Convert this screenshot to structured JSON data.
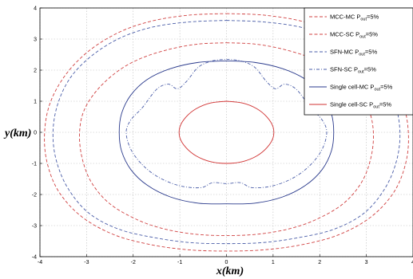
{
  "chart_data": {
    "type": "line",
    "title": "",
    "xlabel": "x(km)",
    "ylabel": "y(km)",
    "xlim": [
      -4,
      4
    ],
    "ylim": [
      -4,
      4
    ],
    "xticks": [
      "-4",
      "-3",
      "-2",
      "-1",
      "0",
      "1",
      "2",
      "3",
      "4"
    ],
    "yticks": [
      "-4",
      "-3",
      "-2",
      "-1",
      "0",
      "1",
      "2",
      "3",
      "4"
    ],
    "grid": true,
    "legend_position": "top-right",
    "series": [
      {
        "name": "MCC-MC P_out=5%",
        "legend_main": "MCC-MC P",
        "legend_sub": "out",
        "legend_tail": "=5%",
        "color": "#d04040",
        "dash": "dashed",
        "points": [
          [
            0,
            3.82
          ],
          [
            0.8,
            3.77
          ],
          [
            1.6,
            3.58
          ],
          [
            2.3,
            3.22
          ],
          [
            2.95,
            2.62
          ],
          [
            3.45,
            1.85
          ],
          [
            3.78,
            0.95
          ],
          [
            3.9,
            0
          ],
          [
            3.85,
            -0.95
          ],
          [
            3.6,
            -1.9
          ],
          [
            3.1,
            -2.72
          ],
          [
            2.4,
            -3.3
          ],
          [
            1.6,
            -3.62
          ],
          [
            0.8,
            -3.78
          ],
          [
            0,
            -3.82
          ],
          [
            -0.8,
            -3.78
          ],
          [
            -1.6,
            -3.62
          ],
          [
            -2.4,
            -3.3
          ],
          [
            -3.1,
            -2.72
          ],
          [
            -3.6,
            -1.9
          ],
          [
            -3.85,
            -0.95
          ],
          [
            -3.9,
            0
          ],
          [
            -3.78,
            0.95
          ],
          [
            -3.45,
            1.85
          ],
          [
            -2.95,
            2.62
          ],
          [
            -2.3,
            3.22
          ],
          [
            -1.6,
            3.58
          ],
          [
            -0.8,
            3.77
          ],
          [
            0,
            3.82
          ]
        ]
      },
      {
        "name": "MCC-SC P_out=5%",
        "legend_main": "MCC-SC P",
        "legend_sub": "out",
        "legend_tail": "=5%",
        "color": "#d04040",
        "dash": "dashed",
        "points": [
          [
            0,
            2.88
          ],
          [
            0.6,
            2.84
          ],
          [
            1.2,
            2.68
          ],
          [
            1.8,
            2.4
          ],
          [
            2.3,
            2.0
          ],
          [
            2.75,
            1.4
          ],
          [
            3.05,
            0.72
          ],
          [
            3.15,
            0
          ],
          [
            3.1,
            -0.8
          ],
          [
            2.9,
            -1.6
          ],
          [
            2.5,
            -2.3
          ],
          [
            1.9,
            -2.82
          ],
          [
            1.3,
            -3.12
          ],
          [
            0.65,
            -3.28
          ],
          [
            0,
            -3.32
          ],
          [
            -0.65,
            -3.28
          ],
          [
            -1.3,
            -3.12
          ],
          [
            -1.9,
            -2.82
          ],
          [
            -2.5,
            -2.3
          ],
          [
            -2.9,
            -1.6
          ],
          [
            -3.1,
            -0.8
          ],
          [
            -3.15,
            0
          ],
          [
            -3.05,
            0.72
          ],
          [
            -2.75,
            1.4
          ],
          [
            -2.3,
            2.0
          ],
          [
            -1.8,
            2.4
          ],
          [
            -1.2,
            2.68
          ],
          [
            -0.6,
            2.84
          ],
          [
            0,
            2.88
          ]
        ]
      },
      {
        "name": "SFN-MC P_out=5%",
        "legend_main": "SFN-MC P",
        "legend_sub": "out",
        "legend_tail": "=5%",
        "color": "#4a5da8",
        "dash": "dashed",
        "points": [
          [
            0,
            3.6
          ],
          [
            0.8,
            3.55
          ],
          [
            1.6,
            3.38
          ],
          [
            2.3,
            3.02
          ],
          [
            2.9,
            2.45
          ],
          [
            3.35,
            1.75
          ],
          [
            3.62,
            0.9
          ],
          [
            3.72,
            0
          ],
          [
            3.65,
            -0.9
          ],
          [
            3.4,
            -1.8
          ],
          [
            2.95,
            -2.6
          ],
          [
            2.3,
            -3.12
          ],
          [
            1.5,
            -3.4
          ],
          [
            0.75,
            -3.55
          ],
          [
            0,
            -3.58
          ],
          [
            -0.75,
            -3.55
          ],
          [
            -1.5,
            -3.4
          ],
          [
            -2.3,
            -3.12
          ],
          [
            -2.95,
            -2.6
          ],
          [
            -3.4,
            -1.8
          ],
          [
            -3.65,
            -0.9
          ],
          [
            -3.72,
            0
          ],
          [
            -3.62,
            0.9
          ],
          [
            -3.35,
            1.75
          ],
          [
            -2.9,
            2.45
          ],
          [
            -2.3,
            3.02
          ],
          [
            -1.6,
            3.38
          ],
          [
            -0.8,
            3.55
          ],
          [
            0,
            3.6
          ]
        ]
      },
      {
        "name": "SFN-SC P_out=5%",
        "legend_main": "SFN-SC P",
        "legend_sub": "out",
        "legend_tail": "=5%",
        "color": "#4a5da8",
        "dash": "dashdot",
        "points": [
          [
            0,
            2.35
          ],
          [
            0.3,
            2.3
          ],
          [
            0.6,
            2.1
          ],
          [
            0.85,
            1.65
          ],
          [
            1.05,
            1.4
          ],
          [
            1.25,
            1.55
          ],
          [
            1.5,
            1.38
          ],
          [
            1.8,
            0.8
          ],
          [
            2.05,
            0.4
          ],
          [
            2.15,
            0
          ],
          [
            2.05,
            -0.55
          ],
          [
            1.8,
            -1.05
          ],
          [
            1.45,
            -1.45
          ],
          [
            1.0,
            -1.72
          ],
          [
            0.55,
            -1.78
          ],
          [
            0.3,
            -1.62
          ],
          [
            0,
            -1.65
          ],
          [
            -0.3,
            -1.62
          ],
          [
            -0.55,
            -1.78
          ],
          [
            -1.0,
            -1.72
          ],
          [
            -1.45,
            -1.45
          ],
          [
            -1.8,
            -1.05
          ],
          [
            -2.05,
            -0.55
          ],
          [
            -2.15,
            0
          ],
          [
            -2.05,
            0.4
          ],
          [
            -1.8,
            0.8
          ],
          [
            -1.5,
            1.38
          ],
          [
            -1.25,
            1.55
          ],
          [
            -1.05,
            1.4
          ],
          [
            -0.85,
            1.65
          ],
          [
            -0.6,
            2.1
          ],
          [
            -0.3,
            2.3
          ],
          [
            0,
            2.35
          ]
        ]
      },
      {
        "name": "Single cell-MC P_out=5%",
        "legend_main": "Single cell-MC P",
        "legend_sub": "out",
        "legend_tail": "=5%",
        "color": "#2a3a8c",
        "dash": "solid",
        "points": [
          [
            0,
            2.3
          ],
          [
            0.6,
            2.25
          ],
          [
            1.2,
            2.05
          ],
          [
            1.7,
            1.7
          ],
          [
            2.05,
            1.2
          ],
          [
            2.25,
            0.6
          ],
          [
            2.3,
            0
          ],
          [
            2.25,
            -0.6
          ],
          [
            2.05,
            -1.2
          ],
          [
            1.7,
            -1.7
          ],
          [
            1.2,
            -2.08
          ],
          [
            0.6,
            -2.28
          ],
          [
            0,
            -2.3
          ],
          [
            -0.6,
            -2.28
          ],
          [
            -1.2,
            -2.08
          ],
          [
            -1.7,
            -1.7
          ],
          [
            -2.05,
            -1.2
          ],
          [
            -2.25,
            -0.6
          ],
          [
            -2.3,
            0
          ],
          [
            -2.25,
            0.6
          ],
          [
            -2.05,
            1.2
          ],
          [
            -1.7,
            1.7
          ],
          [
            -1.2,
            2.05
          ],
          [
            -0.6,
            2.25
          ],
          [
            0,
            2.3
          ]
        ]
      },
      {
        "name": "Single cell-SC P_out=5%",
        "legend_main": "Single cell-SC P",
        "legend_sub": "out",
        "legend_tail": "=5%",
        "color": "#d03030",
        "dash": "solid",
        "points": [
          [
            0,
            1.0
          ],
          [
            0.35,
            0.94
          ],
          [
            0.65,
            0.76
          ],
          [
            0.87,
            0.49
          ],
          [
            1.0,
            0.17
          ],
          [
            1.0,
            -0.17
          ],
          [
            0.87,
            -0.49
          ],
          [
            0.65,
            -0.76
          ],
          [
            0.35,
            -0.94
          ],
          [
            0,
            -1.0
          ],
          [
            -0.35,
            -0.94
          ],
          [
            -0.65,
            -0.76
          ],
          [
            -0.87,
            -0.49
          ],
          [
            -1.0,
            -0.17
          ],
          [
            -1.0,
            0.17
          ],
          [
            -0.87,
            0.49
          ],
          [
            -0.65,
            0.76
          ],
          [
            -0.35,
            0.94
          ],
          [
            0,
            1.0
          ]
        ]
      }
    ]
  }
}
